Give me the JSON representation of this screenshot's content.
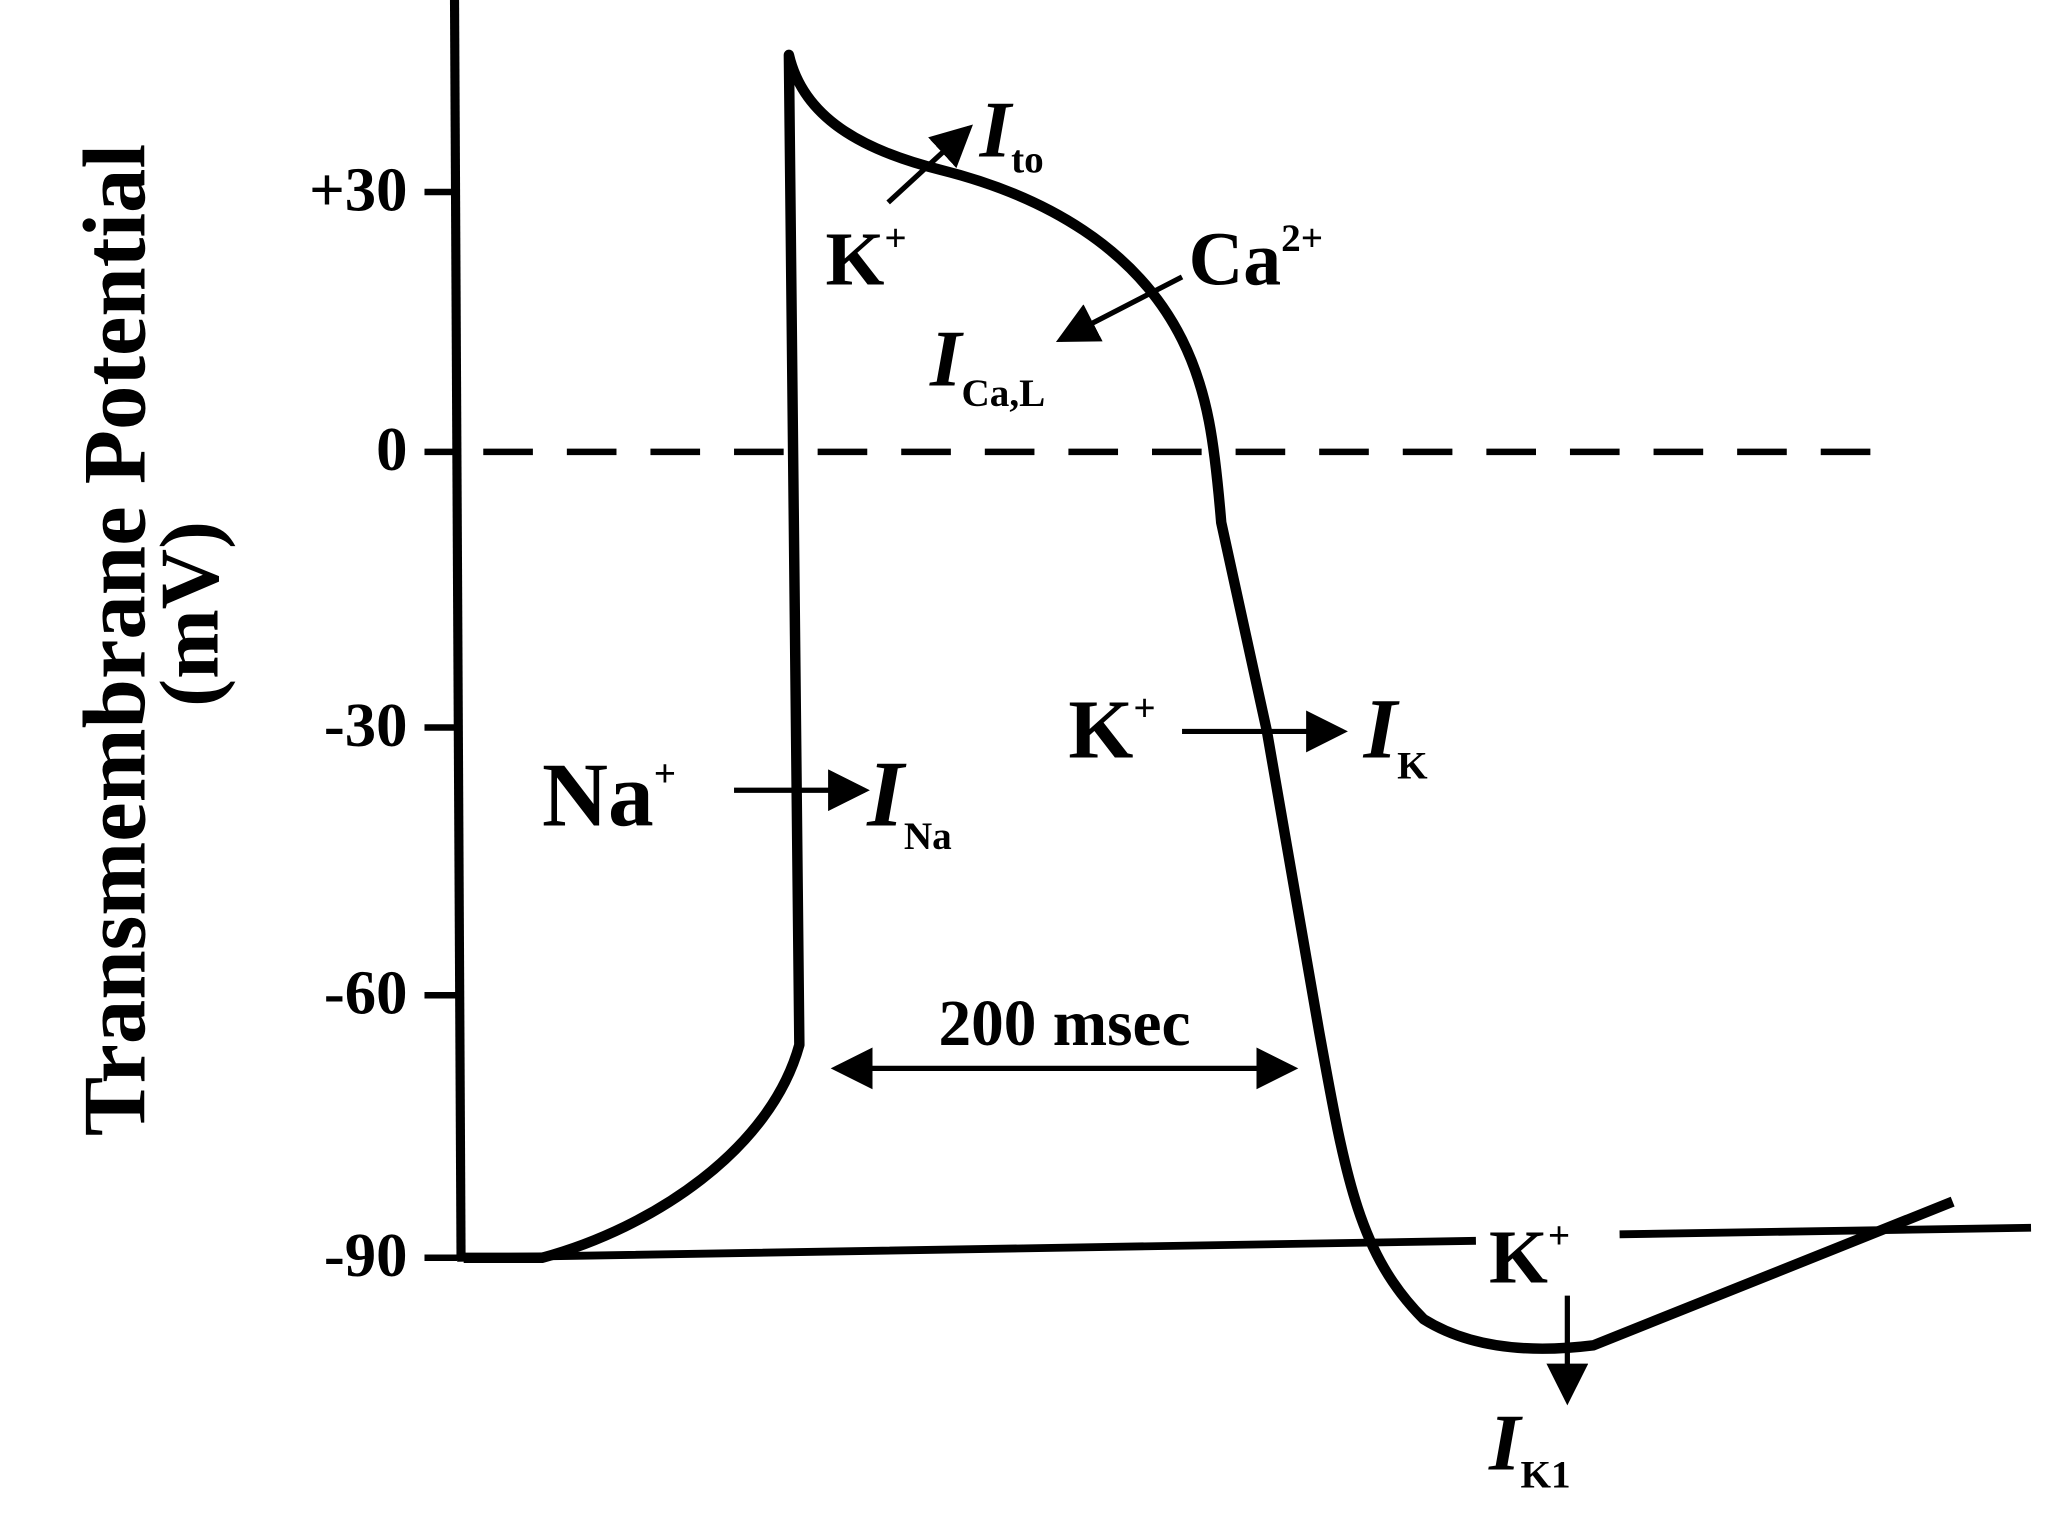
{
  "axis": {
    "label_line1": "Transmembrane Potential",
    "label_line2": "(mV)",
    "ticks": [
      "+30",
      "0",
      "-30",
      "-60",
      "-90"
    ]
  },
  "annotations": {
    "k_to": {
      "ion": "K",
      "charge": "+"
    },
    "i_to": {
      "symbol": "I",
      "subscript": "to"
    },
    "ca": {
      "ion": "Ca",
      "charge": "2+"
    },
    "i_cal": {
      "symbol": "I",
      "subscript": "Ca,L"
    },
    "na": {
      "ion": "Na",
      "charge": "+"
    },
    "i_na": {
      "symbol": "I",
      "subscript": "Na"
    },
    "k_k": {
      "ion": "K",
      "charge": "+"
    },
    "i_k": {
      "symbol": "I",
      "subscript": "K"
    },
    "k_k1": {
      "ion": "K",
      "charge": "+"
    },
    "i_k1": {
      "symbol": "I",
      "subscript": "K1"
    },
    "duration": "200 msec"
  }
}
